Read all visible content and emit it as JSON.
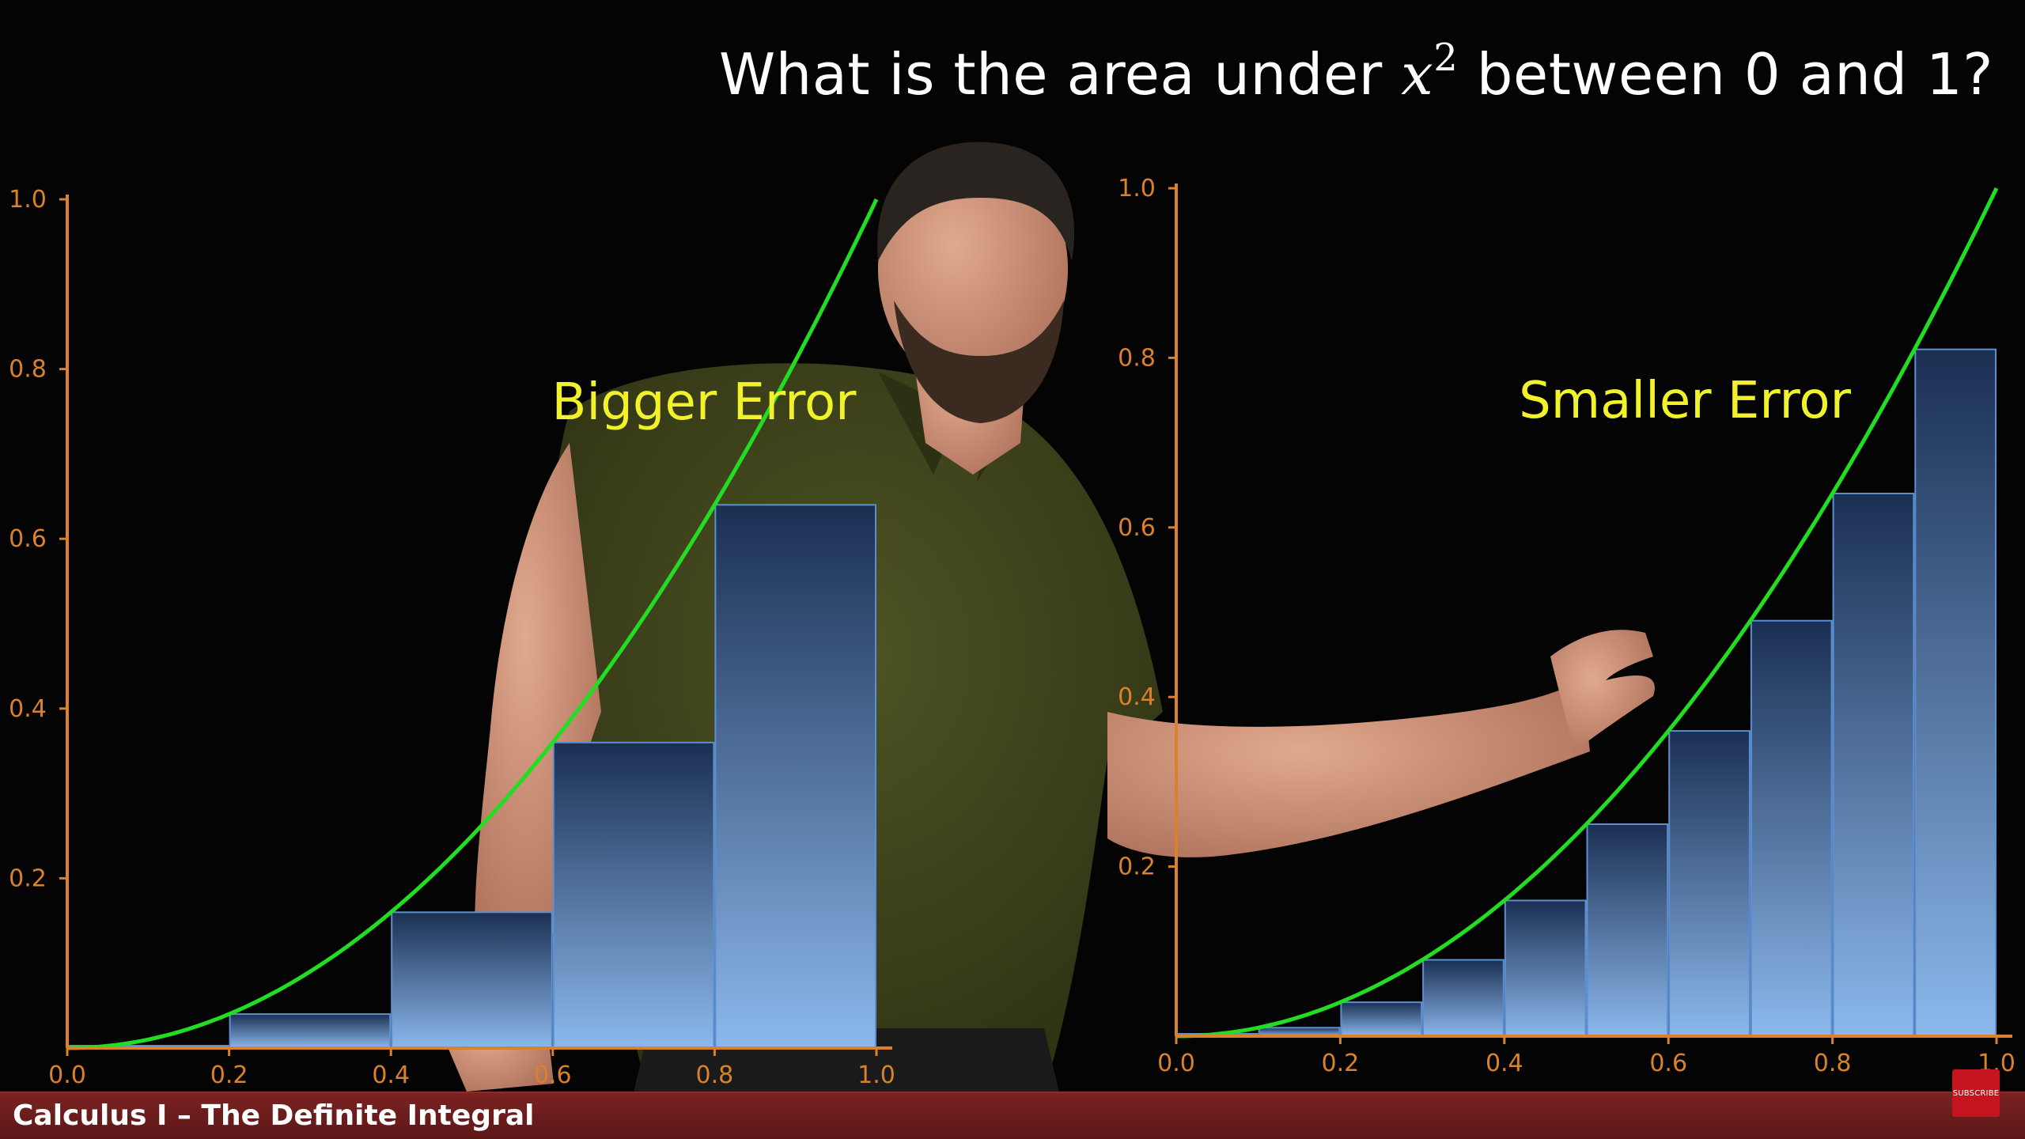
{
  "video": {
    "title_prefix": "What is the area under ",
    "title_var": "x",
    "title_exp": "2",
    "title_suffix": " between 0 and 1?",
    "lower_third": "Calculus I – The Definite Integral",
    "subscribe_label": "SUBSCRIBE"
  },
  "colors": {
    "axis": "#d9822b",
    "curve": "#22dd22",
    "annotation": "#f2f22a",
    "bar_top": "#1a2f52",
    "bar_bottom": "#8cb8ec",
    "bar_edge": "#5d8fd0",
    "lower_third_bg": "#6b1c1c"
  },
  "chart_data": [
    {
      "type": "bar",
      "description_function": "x^2",
      "annotation": "Bigger Error",
      "xlim": [
        0.0,
        1.0
      ],
      "ylim": [
        0.0,
        1.0
      ],
      "x_ticks": [
        "0.0",
        "0.2",
        "0.4",
        "0.6",
        "0.8",
        "1.0"
      ],
      "y_ticks": [
        "0.2",
        "0.4",
        "0.6",
        "0.8",
        "1.0"
      ],
      "bins": [
        [
          0.0,
          0.2
        ],
        [
          0.2,
          0.4
        ],
        [
          0.4,
          0.6
        ],
        [
          0.6,
          0.8
        ],
        [
          0.8,
          1.0
        ]
      ],
      "values": [
        0.0,
        0.04,
        0.16,
        0.36,
        0.64
      ]
    },
    {
      "type": "bar",
      "description_function": "x^2",
      "annotation": "Smaller Error",
      "xlim": [
        0.0,
        1.0
      ],
      "ylim": [
        0.0,
        1.0
      ],
      "x_ticks": [
        "0.0",
        "0.2",
        "0.4",
        "0.6",
        "0.8",
        "1.0"
      ],
      "y_ticks": [
        "0.2",
        "0.4",
        "0.6",
        "0.8",
        "1.0"
      ],
      "bins": [
        [
          0.0,
          0.1
        ],
        [
          0.1,
          0.2
        ],
        [
          0.2,
          0.3
        ],
        [
          0.3,
          0.4
        ],
        [
          0.4,
          0.5
        ],
        [
          0.5,
          0.6
        ],
        [
          0.6,
          0.7
        ],
        [
          0.7,
          0.8
        ],
        [
          0.8,
          0.9
        ],
        [
          0.9,
          1.0
        ]
      ],
      "values": [
        0.0,
        0.01,
        0.04,
        0.09,
        0.16,
        0.25,
        0.36,
        0.49,
        0.64,
        0.81
      ]
    }
  ]
}
